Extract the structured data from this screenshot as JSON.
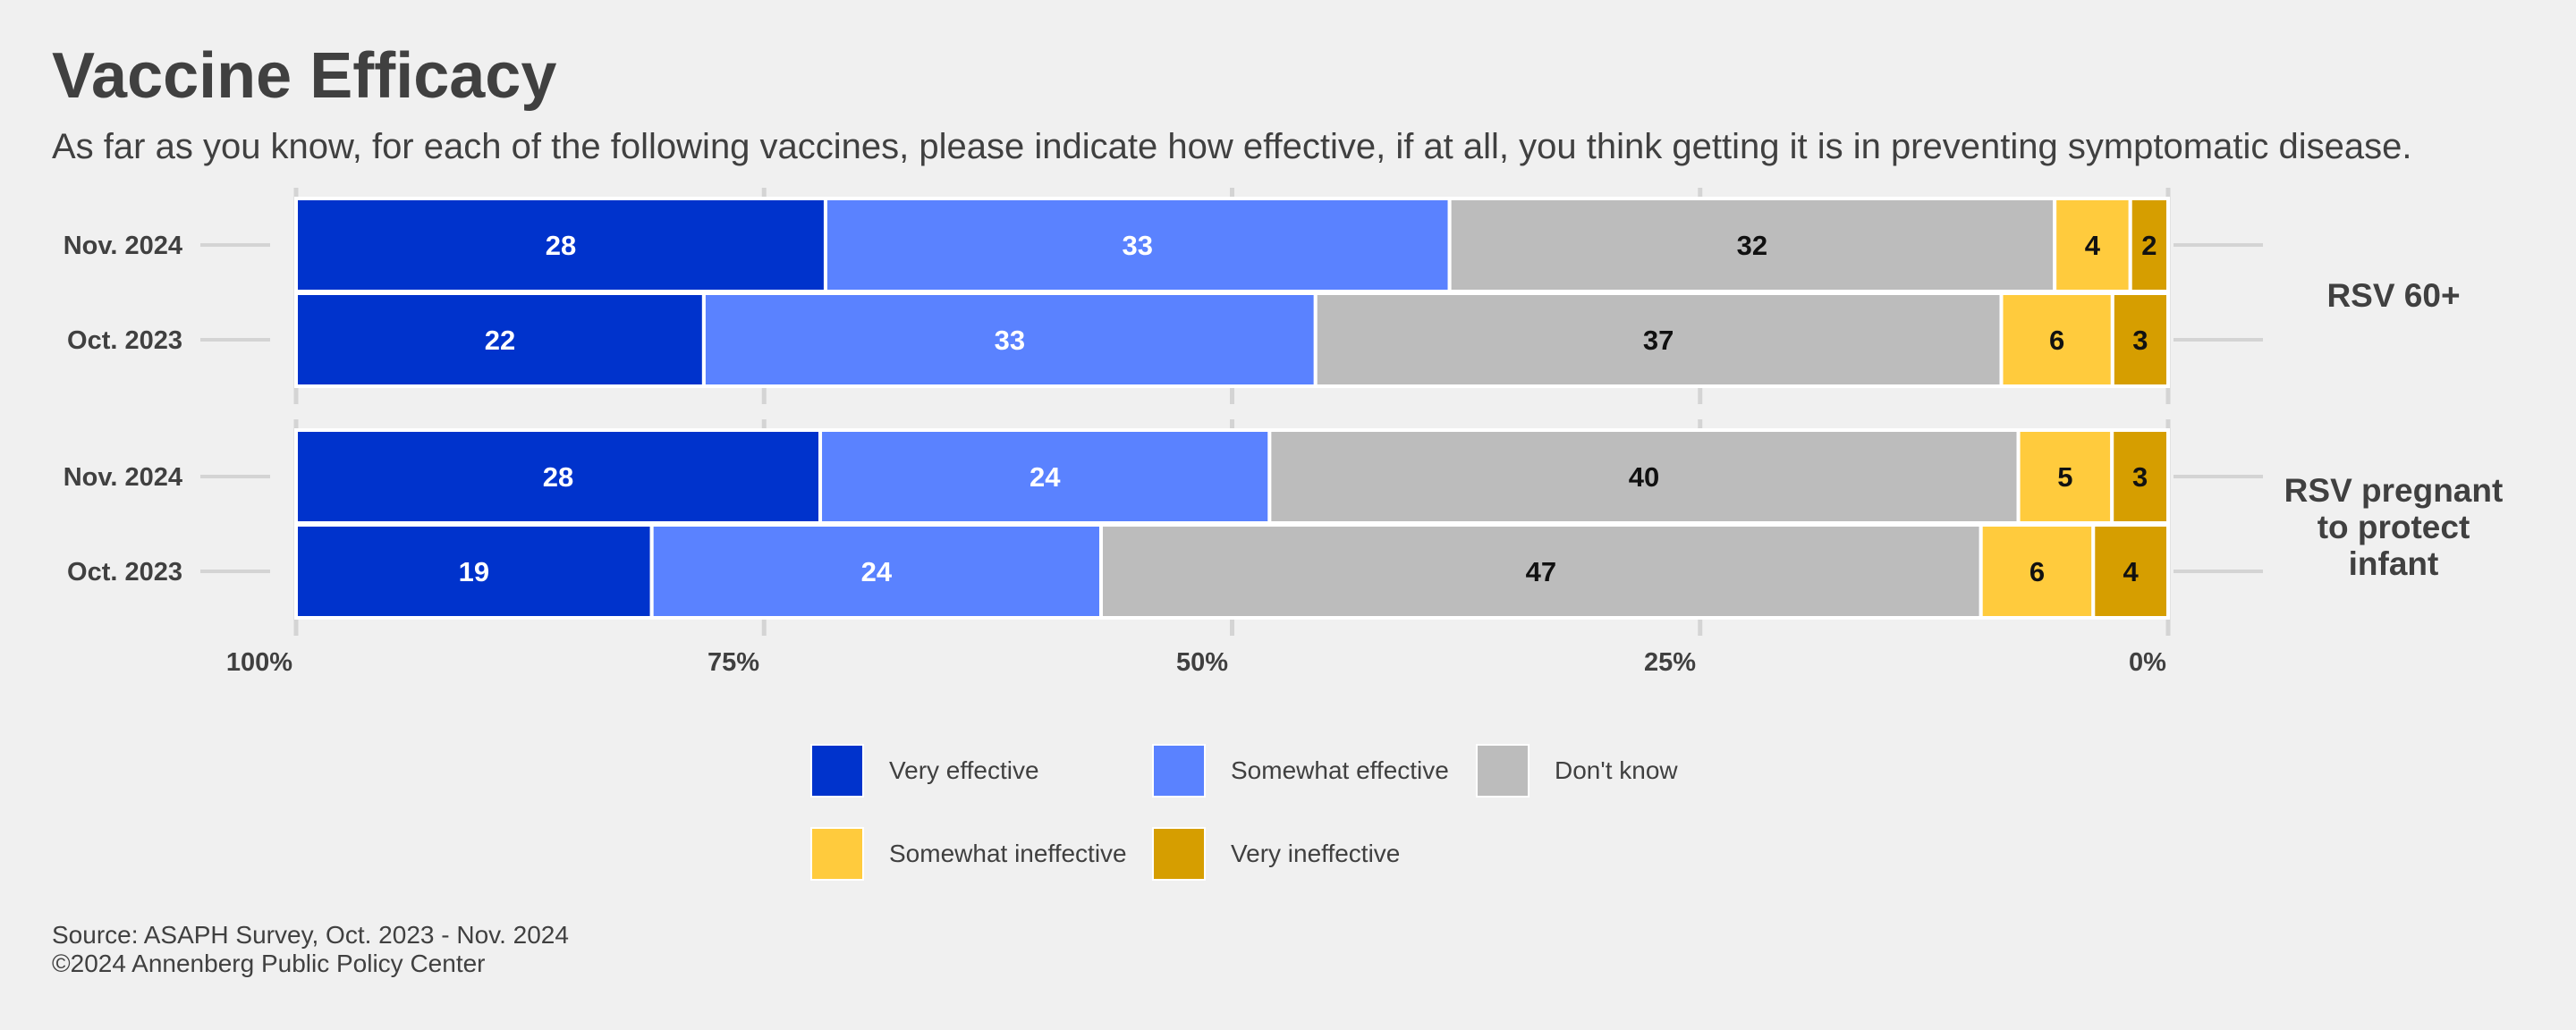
{
  "title": "Vaccine Efficacy",
  "subtitle": "As far as you know, for each of the following vaccines, please indicate how effective, if at all, you think getting it is in preventing symptomatic disease.",
  "source": {
    "line1": "Source: ASAPH Survey, Oct. 2023 - Nov. 2024",
    "line2": "©2024 Annenberg Public Policy Center"
  },
  "legend": [
    {
      "label": "Very effective",
      "color": "#0033cc"
    },
    {
      "label": "Somewhat effective",
      "color": "#5a82ff"
    },
    {
      "label": "Don't know",
      "color": "#bcbcbc"
    },
    {
      "label": "Somewhat ineffective",
      "color": "#ffcb3d"
    },
    {
      "label": "Very ineffective",
      "color": "#d69e00"
    }
  ],
  "chart_data": {
    "type": "bar",
    "orientation": "horizontal-stacked-100",
    "x_ticks": [
      "100%",
      "75%",
      "50%",
      "25%",
      "0%"
    ],
    "x_range": [
      0,
      100
    ],
    "x_reversed": true,
    "grid": true,
    "legend_position": "bottom",
    "series_names": [
      "Very effective",
      "Somewhat effective",
      "Don't know",
      "Somewhat ineffective",
      "Very ineffective"
    ],
    "series_colors": [
      "#0033cc",
      "#5a82ff",
      "#bcbcbc",
      "#ffcb3d",
      "#d69e00"
    ],
    "label_colors": [
      "#ffffff",
      "#ffffff",
      "#111111",
      "#111111",
      "#111111"
    ],
    "panels": [
      {
        "name": "RSV 60+",
        "name_lines": [
          "RSV 60+"
        ],
        "rows": [
          {
            "label": "Nov. 2024",
            "values": [
              28,
              33,
              32,
              4,
              2
            ]
          },
          {
            "label": "Oct. 2023",
            "values": [
              22,
              33,
              37,
              6,
              3
            ]
          }
        ]
      },
      {
        "name": "RSV pregnant to protect infant",
        "name_lines": [
          "RSV pregnant",
          "to protect",
          "infant"
        ],
        "rows": [
          {
            "label": "Nov. 2024",
            "values": [
              28,
              24,
              40,
              5,
              3
            ]
          },
          {
            "label": "Oct. 2023",
            "values": [
              19,
              24,
              47,
              6,
              4
            ]
          }
        ]
      }
    ]
  }
}
